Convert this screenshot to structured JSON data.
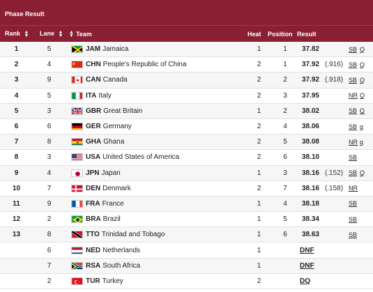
{
  "title": "Phase Result",
  "headers": {
    "rank": "Rank",
    "lane": "Lane",
    "team": "Team",
    "heat": "Heat",
    "position": "Position",
    "result": "Result"
  },
  "rows": [
    {
      "rank": "1",
      "lane": "5",
      "code": "JAM",
      "country": "Jamaica",
      "heat": "1",
      "position": "1",
      "time": "37.82",
      "tiebreak": "",
      "record": "SB",
      "qual": "Q",
      "flag": "flag-jam-icon"
    },
    {
      "rank": "2",
      "lane": "4",
      "code": "CHN",
      "country": "People's Republic of China",
      "heat": "2",
      "position": "1",
      "time": "37.92",
      "tiebreak": "(.916)",
      "record": "SB",
      "qual": "Q",
      "flag": "flag-chn-icon"
    },
    {
      "rank": "3",
      "lane": "9",
      "code": "CAN",
      "country": "Canada",
      "heat": "2",
      "position": "2",
      "time": "37.92",
      "tiebreak": "(.918)",
      "record": "SB",
      "qual": "Q",
      "flag": "flag-can-icon"
    },
    {
      "rank": "4",
      "lane": "5",
      "code": "ITA",
      "country": "Italy",
      "heat": "2",
      "position": "3",
      "time": "37.95",
      "tiebreak": "",
      "record": "NR",
      "qual": "Q",
      "flag": "flag-ita-icon"
    },
    {
      "rank": "5",
      "lane": "3",
      "code": "GBR",
      "country": "Great Britain",
      "heat": "1",
      "position": "2",
      "time": "38.02",
      "tiebreak": "",
      "record": "SB",
      "qual": "Q",
      "flag": "flag-gbr-icon"
    },
    {
      "rank": "6",
      "lane": "6",
      "code": "GER",
      "country": "Germany",
      "heat": "2",
      "position": "4",
      "time": "38.06",
      "tiebreak": "",
      "record": "SB",
      "qual": "q",
      "flag": "flag-ger-icon"
    },
    {
      "rank": "7",
      "lane": "8",
      "code": "GHA",
      "country": "Ghana",
      "heat": "2",
      "position": "5",
      "time": "38.08",
      "tiebreak": "",
      "record": "NR",
      "qual": "q",
      "flag": "flag-gha-icon"
    },
    {
      "rank": "8",
      "lane": "3",
      "code": "USA",
      "country": "United States of America",
      "heat": "2",
      "position": "6",
      "time": "38.10",
      "tiebreak": "",
      "record": "SB",
      "qual": "",
      "flag": "flag-usa-icon"
    },
    {
      "rank": "9",
      "lane": "4",
      "code": "JPN",
      "country": "Japan",
      "heat": "1",
      "position": "3",
      "time": "38.16",
      "tiebreak": "(.152)",
      "record": "SB",
      "qual": "Q",
      "flag": "flag-jpn-icon"
    },
    {
      "rank": "10",
      "lane": "7",
      "code": "DEN",
      "country": "Denmark",
      "heat": "2",
      "position": "7",
      "time": "38.16",
      "tiebreak": "(.158)",
      "record": "NR",
      "qual": "",
      "flag": "flag-den-icon"
    },
    {
      "rank": "11",
      "lane": "9",
      "code": "FRA",
      "country": "France",
      "heat": "1",
      "position": "4",
      "time": "38.18",
      "tiebreak": "",
      "record": "SB",
      "qual": "",
      "flag": "flag-fra-icon"
    },
    {
      "rank": "12",
      "lane": "2",
      "code": "BRA",
      "country": "Brazil",
      "heat": "1",
      "position": "5",
      "time": "38.34",
      "tiebreak": "",
      "record": "SB",
      "qual": "",
      "flag": "flag-bra-icon"
    },
    {
      "rank": "13",
      "lane": "8",
      "code": "TTO",
      "country": "Trinidad and Tobago",
      "heat": "1",
      "position": "6",
      "time": "38.63",
      "tiebreak": "",
      "record": "SB",
      "qual": "",
      "flag": "flag-tto-icon"
    },
    {
      "rank": "",
      "lane": "6",
      "code": "NED",
      "country": "Netherlands",
      "heat": "1",
      "position": "",
      "time": "",
      "status": "DNF",
      "tiebreak": "",
      "record": "",
      "qual": "",
      "flag": "flag-ned-icon"
    },
    {
      "rank": "",
      "lane": "7",
      "code": "RSA",
      "country": "South Africa",
      "heat": "1",
      "position": "",
      "time": "",
      "status": "DNF",
      "tiebreak": "",
      "record": "",
      "qual": "",
      "flag": "flag-rsa-icon"
    },
    {
      "rank": "",
      "lane": "2",
      "code": "TUR",
      "country": "Turkey",
      "heat": "2",
      "position": "",
      "time": "",
      "status": "DQ",
      "tiebreak": "",
      "record": "",
      "qual": "",
      "flag": "flag-tur-icon"
    }
  ],
  "colors": {
    "header_bg": "#8a1f33",
    "header_text": "#ffffff"
  }
}
